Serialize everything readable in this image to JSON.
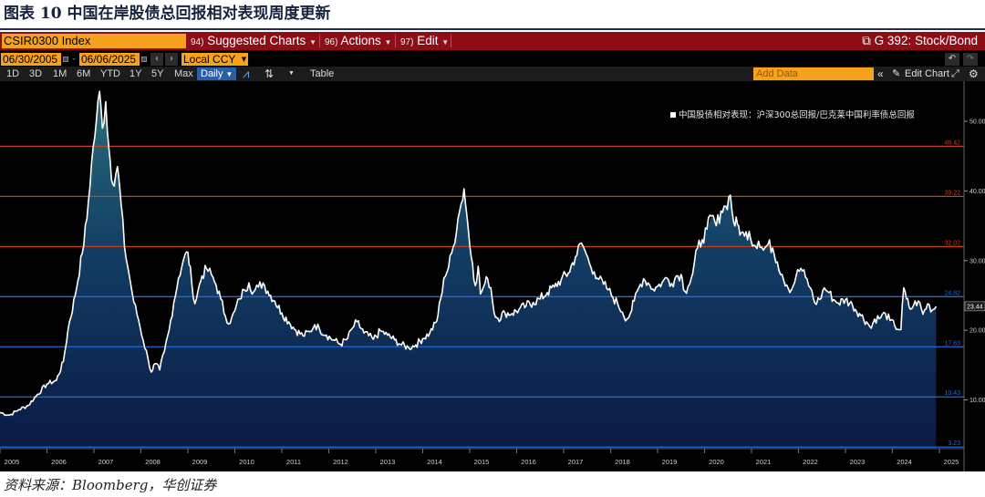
{
  "figure": {
    "title": "图表 10 中国在岸股债总回报相对表现周度更新",
    "source": "资料来源：Bloomberg，华创证券"
  },
  "terminal": {
    "ticker": "CSIR0300 Index",
    "menus": [
      {
        "num": "94)",
        "label": "Suggested Charts"
      },
      {
        "num": "96)",
        "label": "Actions"
      },
      {
        "num": "97)",
        "label": "Edit"
      }
    ],
    "chart_title": "G 392: Stock/Bond",
    "start_date": "06/30/2005",
    "end_date": "06/06/2025",
    "currency": "Local CCY",
    "ranges": [
      "1D",
      "3D",
      "1M",
      "6M",
      "YTD",
      "1Y",
      "5Y",
      "Max"
    ],
    "frequency": "Daily",
    "table_label": "Table",
    "add_data_placeholder": "Add Data",
    "edit_chart": "Edit Chart"
  },
  "colors": {
    "terminal_bg": "#000000",
    "header_red": "#8f0d17",
    "amber": "#f7a21d",
    "line": "#ffffff",
    "level_red": "#c2421e",
    "level_blue": "#1f6bd4",
    "fill_top": "#2a6f7e",
    "fill_bottom": "#0a1a45"
  },
  "chart_data": {
    "type": "area",
    "legend": "中国股债相对表现：沪深300总回报/巴克莱中国利率债总回报",
    "legend_position": "top-right",
    "x_ticks": [
      "2005",
      "2006",
      "2007",
      "2008",
      "2009",
      "2010",
      "2011",
      "2012",
      "2013",
      "2014",
      "2015",
      "2016",
      "2017",
      "2018",
      "2019",
      "2020",
      "2021",
      "2022",
      "2023",
      "2024",
      "2025"
    ],
    "y_ticks": [
      10.0,
      20.0,
      30.0,
      40.0,
      50.0
    ],
    "y_tick_labels": [
      "10.00",
      "20.00",
      "30.00",
      "40.00",
      "50.00"
    ],
    "ylim": [
      3.0,
      55.5
    ],
    "levels": [
      {
        "value": 46.42,
        "label": "46.42",
        "color": "red"
      },
      {
        "value": 39.22,
        "label": "39.22",
        "color": "red"
      },
      {
        "value": 32.02,
        "label": "32.02",
        "color": "red"
      },
      {
        "value": 24.82,
        "label": "24.82",
        "color": "blue"
      },
      {
        "value": 17.63,
        "label": "17.63",
        "color": "blue"
      },
      {
        "value": 10.43,
        "label": "10.43",
        "color": "blue"
      },
      {
        "value": 3.23,
        "label": "3.23",
        "color": "blue"
      }
    ],
    "last_value": 23.44,
    "last_label": "23.44",
    "series": [
      {
        "name": "中国股债相对表现：沪深300总回报/巴克莱中国利率债总回报",
        "points": [
          [
            2005.5,
            8.2
          ],
          [
            2005.7,
            7.8
          ],
          [
            2005.9,
            8.6
          ],
          [
            2006.1,
            9.2
          ],
          [
            2006.3,
            10.8
          ],
          [
            2006.5,
            12.3
          ],
          [
            2006.7,
            12.8
          ],
          [
            2006.85,
            15.5
          ],
          [
            2006.95,
            20.2
          ],
          [
            2007.1,
            25.0
          ],
          [
            2007.25,
            31.0
          ],
          [
            2007.35,
            36.0
          ],
          [
            2007.45,
            44.0
          ],
          [
            2007.55,
            50.0
          ],
          [
            2007.62,
            54.3
          ],
          [
            2007.68,
            49.0
          ],
          [
            2007.75,
            52.8
          ],
          [
            2007.82,
            46.0
          ],
          [
            2007.9,
            41.0
          ],
          [
            2008.0,
            43.5
          ],
          [
            2008.08,
            38.0
          ],
          [
            2008.15,
            32.0
          ],
          [
            2008.25,
            28.0
          ],
          [
            2008.35,
            24.0
          ],
          [
            2008.45,
            21.5
          ],
          [
            2008.55,
            18.5
          ],
          [
            2008.65,
            16.0
          ],
          [
            2008.72,
            14.0
          ],
          [
            2008.8,
            15.2
          ],
          [
            2008.9,
            14.3
          ],
          [
            2009.0,
            17.0
          ],
          [
            2009.1,
            20.0
          ],
          [
            2009.2,
            24.0
          ],
          [
            2009.3,
            27.5
          ],
          [
            2009.4,
            30.0
          ],
          [
            2009.5,
            31.2
          ],
          [
            2009.58,
            27.0
          ],
          [
            2009.65,
            23.8
          ],
          [
            2009.72,
            25.8
          ],
          [
            2009.8,
            27.8
          ],
          [
            2009.9,
            28.8
          ],
          [
            2010.0,
            28.0
          ],
          [
            2010.1,
            26.5
          ],
          [
            2010.2,
            24.5
          ],
          [
            2010.3,
            22.0
          ],
          [
            2010.4,
            21.0
          ],
          [
            2010.5,
            22.8
          ],
          [
            2010.6,
            24.5
          ],
          [
            2010.7,
            25.8
          ],
          [
            2010.8,
            26.8
          ],
          [
            2010.9,
            25.5
          ],
          [
            2011.0,
            26.2
          ],
          [
            2011.1,
            26.8
          ],
          [
            2011.2,
            25.6
          ],
          [
            2011.35,
            24.2
          ],
          [
            2011.5,
            22.5
          ],
          [
            2011.65,
            21.2
          ],
          [
            2011.8,
            20.0
          ],
          [
            2011.95,
            19.2
          ],
          [
            2012.1,
            19.8
          ],
          [
            2012.2,
            20.8
          ],
          [
            2012.3,
            20.2
          ],
          [
            2012.45,
            19.3
          ],
          [
            2012.6,
            18.6
          ],
          [
            2012.75,
            18.0
          ],
          [
            2012.9,
            18.8
          ],
          [
            2013.0,
            20.3
          ],
          [
            2013.1,
            21.2
          ],
          [
            2013.25,
            19.6
          ],
          [
            2013.45,
            18.7
          ],
          [
            2013.6,
            19.9
          ],
          [
            2013.75,
            19.3
          ],
          [
            2013.9,
            18.6
          ],
          [
            2014.05,
            17.9
          ],
          [
            2014.2,
            17.5
          ],
          [
            2014.35,
            17.9
          ],
          [
            2014.5,
            18.8
          ],
          [
            2014.65,
            19.6
          ],
          [
            2014.8,
            21.3
          ],
          [
            2014.88,
            24.5
          ],
          [
            2014.95,
            27.5
          ],
          [
            2015.05,
            29.0
          ],
          [
            2015.15,
            32.0
          ],
          [
            2015.25,
            36.0
          ],
          [
            2015.32,
            38.2
          ],
          [
            2015.38,
            40.3
          ],
          [
            2015.44,
            36.5
          ],
          [
            2015.5,
            32.3
          ],
          [
            2015.56,
            29.6
          ],
          [
            2015.62,
            26.4
          ],
          [
            2015.68,
            29.2
          ],
          [
            2015.73,
            25.2
          ],
          [
            2015.8,
            26.3
          ],
          [
            2015.88,
            27.4
          ],
          [
            2015.95,
            26.1
          ],
          [
            2016.02,
            22.5
          ],
          [
            2016.1,
            21.7
          ],
          [
            2016.25,
            22.5
          ],
          [
            2016.4,
            22.4
          ],
          [
            2016.55,
            23.0
          ],
          [
            2016.7,
            23.5
          ],
          [
            2016.85,
            24.0
          ],
          [
            2017.0,
            24.5
          ],
          [
            2017.15,
            25.4
          ],
          [
            2017.3,
            26.2
          ],
          [
            2017.45,
            27.3
          ],
          [
            2017.6,
            28.2
          ],
          [
            2017.75,
            30.5
          ],
          [
            2017.88,
            32.5
          ],
          [
            2017.95,
            31.5
          ],
          [
            2018.05,
            29.6
          ],
          [
            2018.15,
            28.4
          ],
          [
            2018.25,
            27.3
          ],
          [
            2018.35,
            26.6
          ],
          [
            2018.45,
            25.8
          ],
          [
            2018.55,
            24.7
          ],
          [
            2018.65,
            23.8
          ],
          [
            2018.75,
            22.6
          ],
          [
            2018.85,
            21.6
          ],
          [
            2018.92,
            22.4
          ],
          [
            2019.0,
            24.2
          ],
          [
            2019.1,
            26.1
          ],
          [
            2019.2,
            27.4
          ],
          [
            2019.3,
            26.8
          ],
          [
            2019.4,
            25.9
          ],
          [
            2019.5,
            26.3
          ],
          [
            2019.6,
            26.9
          ],
          [
            2019.7,
            27.5
          ],
          [
            2019.8,
            26.7
          ],
          [
            2019.9,
            27.8
          ],
          [
            2020.0,
            28.0
          ],
          [
            2020.08,
            25.6
          ],
          [
            2020.15,
            26.3
          ],
          [
            2020.25,
            28.2
          ],
          [
            2020.35,
            31.8
          ],
          [
            2020.45,
            33.0
          ],
          [
            2020.55,
            34.5
          ],
          [
            2020.65,
            36.4
          ],
          [
            2020.75,
            35.0
          ],
          [
            2020.85,
            37.1
          ],
          [
            2020.95,
            37.8
          ],
          [
            2021.05,
            39.4
          ],
          [
            2021.12,
            35.5
          ],
          [
            2021.2,
            35.2
          ],
          [
            2021.28,
            34.0
          ],
          [
            2021.35,
            33.5
          ],
          [
            2021.45,
            34.2
          ],
          [
            2021.55,
            32.2
          ],
          [
            2021.65,
            32.8
          ],
          [
            2021.75,
            31.5
          ],
          [
            2021.85,
            32.3
          ],
          [
            2021.95,
            31.8
          ],
          [
            2022.05,
            29.8
          ],
          [
            2022.15,
            28.0
          ],
          [
            2022.25,
            26.5
          ],
          [
            2022.35,
            25.8
          ],
          [
            2022.45,
            27.8
          ],
          [
            2022.55,
            28.9
          ],
          [
            2022.65,
            27.6
          ],
          [
            2022.75,
            26.1
          ],
          [
            2022.85,
            23.9
          ],
          [
            2022.95,
            24.4
          ],
          [
            2023.05,
            26.1
          ],
          [
            2023.15,
            25.4
          ],
          [
            2023.25,
            24.4
          ],
          [
            2023.35,
            23.9
          ],
          [
            2023.5,
            24.4
          ],
          [
            2023.65,
            23.6
          ],
          [
            2023.8,
            22.4
          ],
          [
            2023.95,
            21.2
          ],
          [
            2024.05,
            20.3
          ],
          [
            2024.12,
            21.6
          ],
          [
            2024.25,
            21.8
          ],
          [
            2024.35,
            22.4
          ],
          [
            2024.45,
            21.4
          ],
          [
            2024.55,
            20.6
          ],
          [
            2024.68,
            20.1
          ],
          [
            2024.74,
            26.1
          ],
          [
            2024.8,
            24.5
          ],
          [
            2024.88,
            23.0
          ],
          [
            2024.95,
            23.6
          ],
          [
            2025.05,
            24.2
          ],
          [
            2025.15,
            22.3
          ],
          [
            2025.25,
            23.8
          ],
          [
            2025.35,
            22.9
          ],
          [
            2025.43,
            23.44
          ]
        ]
      }
    ]
  }
}
